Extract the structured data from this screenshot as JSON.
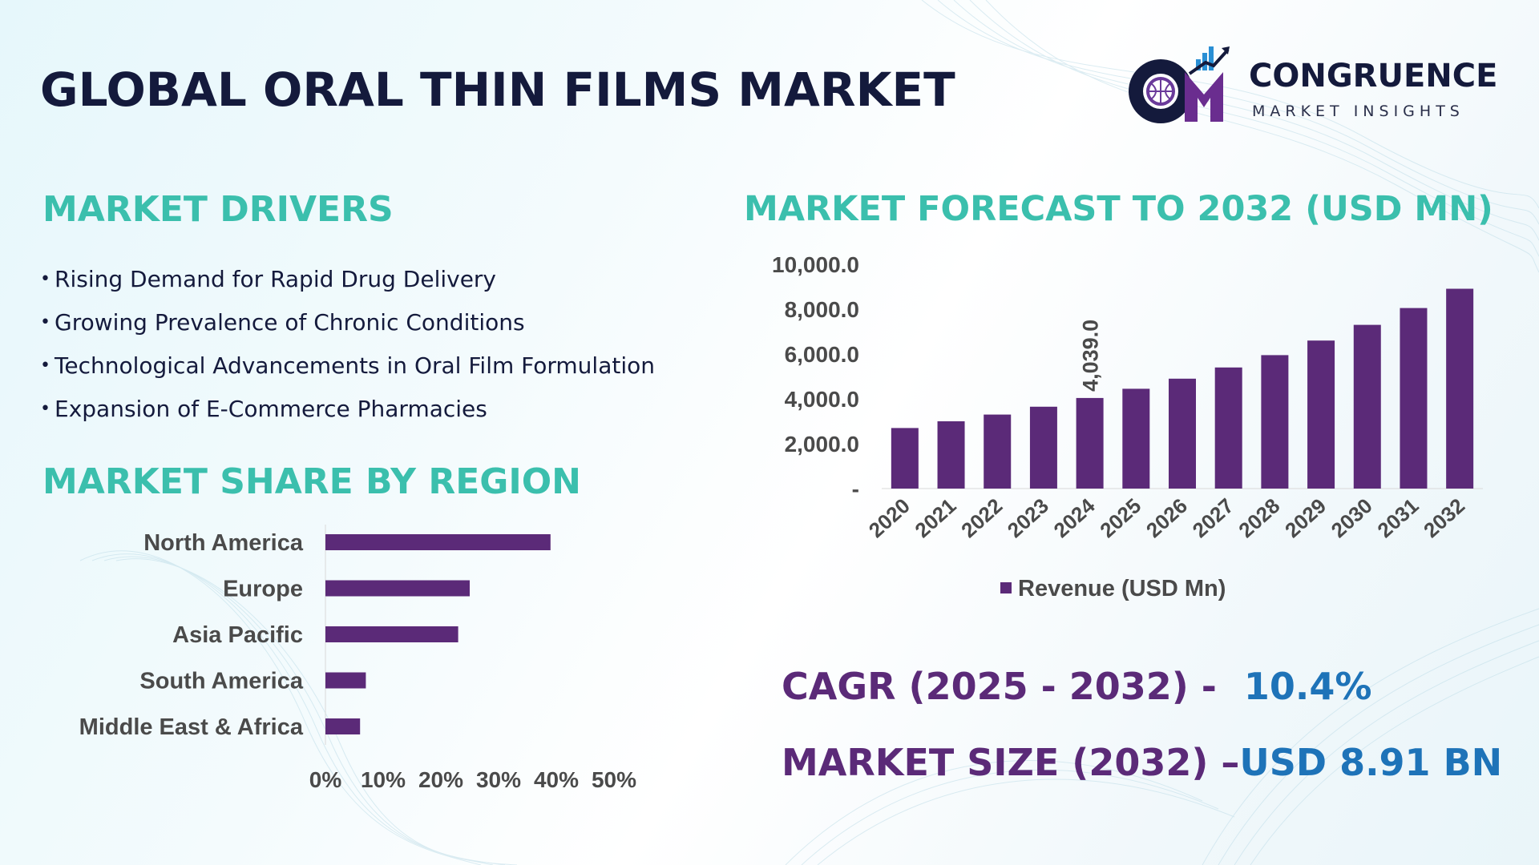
{
  "title": "GLOBAL ORAL THIN FILMS MARKET",
  "logo": {
    "name": "CONGRUENCE",
    "subtitle": "MARKET INSIGHTS",
    "mark_text": "CM"
  },
  "colors": {
    "title": "#141a3c",
    "section": "#3bbfad",
    "bar": "#5b2a78",
    "kpi_label": "#5b2a78",
    "kpi_value": "#1e73b8"
  },
  "drivers": {
    "title": "MARKET DRIVERS",
    "bullet": "•",
    "items": [
      "Rising Demand for Rapid Drug Delivery",
      "Growing Prevalence of Chronic Conditions",
      "Technological Advancements in Oral Film Formulation",
      "Expansion of E-Commerce Pharmacies"
    ]
  },
  "forecast": {
    "title": "MARKET FORECAST TO 2032 (USD MN)"
  },
  "region": {
    "title": "MARKET SHARE BY REGION"
  },
  "kpis": {
    "cagr_label": "CAGR (2025 - 2032) -",
    "cagr_value": "10.4%",
    "size_label": "MARKET SIZE (2032) –",
    "size_value": "USD 8.91 BN"
  },
  "chart_data": [
    {
      "type": "bar",
      "orientation": "vertical",
      "categories": [
        "2020",
        "2021",
        "2022",
        "2023",
        "2024",
        "2025",
        "2026",
        "2027",
        "2028",
        "2029",
        "2030",
        "2031",
        "2032"
      ],
      "series": [
        {
          "name": "Revenue (USD Mn)",
          "values": [
            2700,
            3000,
            3300,
            3650,
            4039,
            4450,
            4900,
            5400,
            5950,
            6600,
            7300,
            8050,
            8910
          ]
        }
      ],
      "data_labels": {
        "2024": "4,039.0"
      },
      "ylim": [
        0,
        10000
      ],
      "yticks": [
        "-",
        "2,000.0",
        "4,000.0",
        "6,000.0",
        "8,000.0",
        "10,000.0"
      ],
      "legend": "bottom",
      "grid": false
    },
    {
      "type": "bar",
      "orientation": "horizontal",
      "categories": [
        "North America",
        "Europe",
        "Asia Pacific",
        "South America",
        "Middle East & Africa"
      ],
      "values": [
        39,
        25,
        23,
        7,
        6
      ],
      "xlim": [
        0,
        50
      ],
      "xticks": [
        "0%",
        "10%",
        "20%",
        "30%",
        "40%",
        "50%"
      ],
      "grid": false
    }
  ]
}
